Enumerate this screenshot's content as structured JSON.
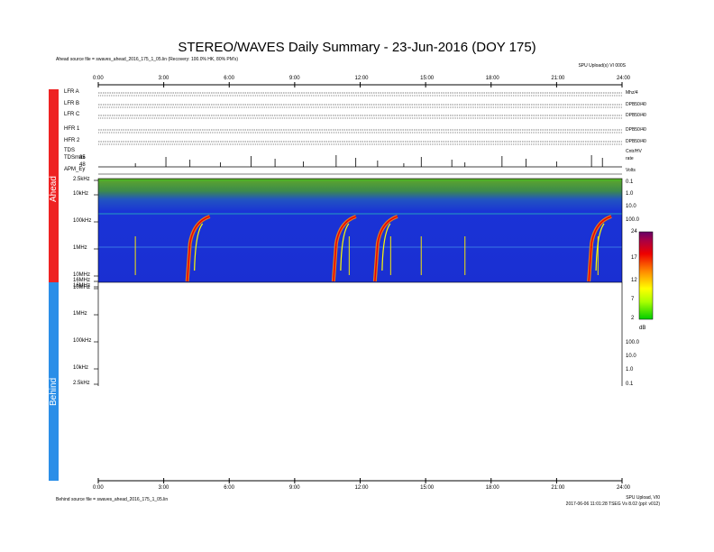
{
  "title": "STEREO/WAVES Daily Summary - 23-Jun-2016 (DOY 175)",
  "ahead_source": "Ahead source file = swaves_ahead_2016_175_1_05.lin (Recovery: 100.0% HK, 80% PM's)",
  "behind_source": "Behind source file = swaves_ahead_2016_175_1_05.lin",
  "top_right_note": "SPU Upload(s) VI 000S",
  "bottom_right_note1": "SPU Upload, VI0",
  "bottom_right_note2": "2017-06-06 11:01:28 TSEG Vs 8.02 (ppl: v012)",
  "side_labels": {
    "ahead": "Ahead",
    "behind": "Behind"
  },
  "time_ticks": [
    "0:00",
    "3:00",
    "6:00",
    "9:00",
    "12:00",
    "15:00",
    "18:00",
    "21:00",
    "24:00"
  ],
  "panel_rows": [
    {
      "label": "LFR A",
      "right": "Mhz/4"
    },
    {
      "label": "LFR B",
      "right": "DPB50/40"
    },
    {
      "label": "LFR C",
      "right": "DPB50/40"
    },
    {
      "label": "HFR 1",
      "right": "DPB50/40"
    },
    {
      "label": "HFR 2",
      "right": "DPB50/40"
    },
    {
      "label": "TDS",
      "right": "Cntr/HV"
    },
    {
      "label": "TDSmax",
      "right": "rate"
    },
    {
      "label": "APM_Ey",
      "right": "Volts"
    }
  ],
  "tds_max_scale": [
    "85",
    "48"
  ],
  "freq_labels_ahead": [
    "2.5kHz",
    "10kHz",
    "100kHz",
    "1MHz",
    "10MHz",
    "16MHz"
  ],
  "freq_labels_behind": [
    "16MHz",
    "10MHz",
    "1MHz",
    "100kHz",
    "10kHz",
    "2.5kHz"
  ],
  "right_scale_ahead": [
    "0.1",
    "1.0",
    "10.0",
    "100.0"
  ],
  "right_scale_behind": [
    "100.0",
    "10.0",
    "1.0",
    "0.1"
  ],
  "colorbar": {
    "ticks": [
      "24",
      "17",
      "12",
      "7",
      "2"
    ],
    "unit": "dB",
    "min": 2,
    "max": 24
  },
  "chart_data": {
    "type": "heatmap",
    "title": "STEREO/WAVES Daily Summary - 23-Jun-2016 (DOY 175)",
    "x_axis": {
      "unit": "UT hours",
      "range": [
        0,
        24
      ]
    },
    "y_axis": {
      "scale": "log",
      "range_hz": [
        2500,
        16000000
      ]
    },
    "color_range_db": [
      2,
      24
    ],
    "type_iii_bursts_hours": [
      4.2,
      10.9,
      12.8,
      22.6
    ],
    "weak_bursts_hours": [
      1.7,
      11.5,
      13.4,
      14.8,
      16.8,
      22.9
    ],
    "spacecraft": [
      "Ahead",
      "Behind"
    ],
    "behind_data": "no data"
  },
  "colors": {
    "background_low": "#1a33d6",
    "ahead_bar": "#ee2222",
    "behind_bar": "#2a8ee8"
  }
}
